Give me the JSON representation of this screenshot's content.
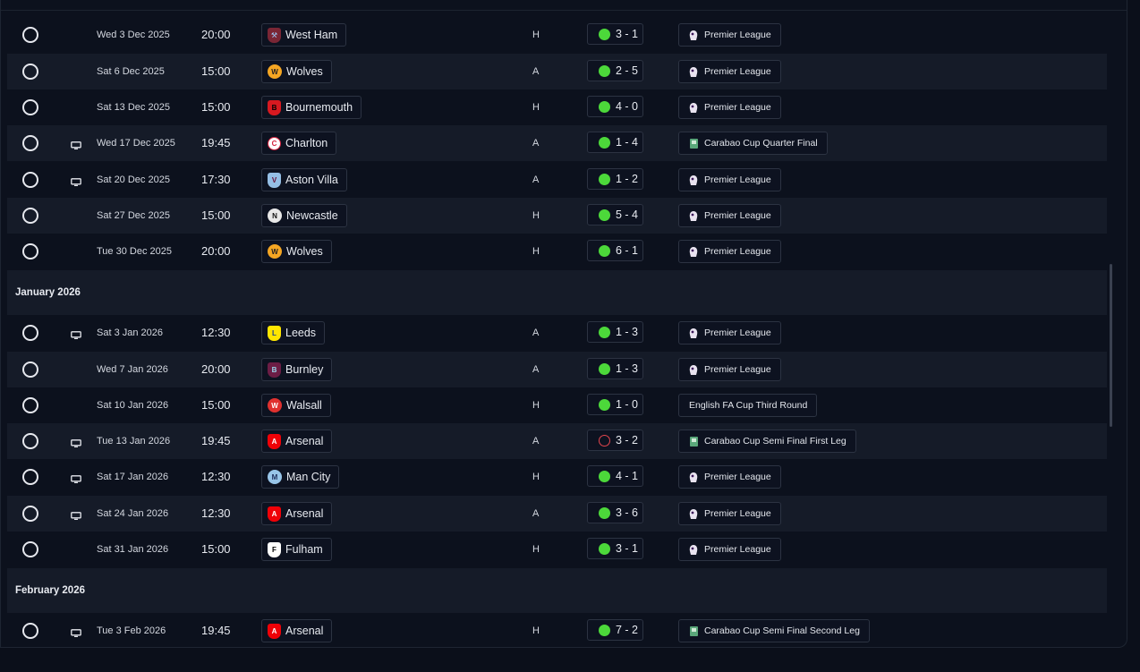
{
  "colors": {
    "win": "#4cd83a",
    "loss": "#e2454d",
    "background": "#0c111d",
    "row_alt": "#151b28"
  },
  "icons": {
    "select": "radio-circle-icon",
    "tv": "tv-icon",
    "premier_league": "premier-league-icon",
    "carabao": "carabao-cup-icon"
  },
  "rows": [
    {
      "date": "Wed 3 Dec 2025",
      "time": "20:00",
      "team": "West Ham",
      "venue": "H",
      "score": "3 - 1",
      "outcome": "W",
      "competition": "Premier League",
      "tv": false
    },
    {
      "date": "Sat 6 Dec 2025",
      "time": "15:00",
      "team": "Wolves",
      "venue": "A",
      "score": "2 - 5",
      "outcome": "W",
      "competition": "Premier League",
      "tv": false
    },
    {
      "date": "Sat 13 Dec 2025",
      "time": "15:00",
      "team": "Bournemouth",
      "venue": "H",
      "score": "4 - 0",
      "outcome": "W",
      "competition": "Premier League",
      "tv": false
    },
    {
      "date": "Wed 17 Dec 2025",
      "time": "19:45",
      "team": "Charlton",
      "venue": "A",
      "score": "1 - 4",
      "outcome": "W",
      "competition": "Carabao Cup Quarter Final",
      "tv": true
    },
    {
      "date": "Sat 20 Dec 2025",
      "time": "17:30",
      "team": "Aston Villa",
      "venue": "A",
      "score": "1 - 2",
      "outcome": "W",
      "competition": "Premier League",
      "tv": true
    },
    {
      "date": "Sat 27 Dec 2025",
      "time": "15:00",
      "team": "Newcastle",
      "venue": "H",
      "score": "5 - 4",
      "outcome": "W",
      "competition": "Premier League",
      "tv": false
    },
    {
      "date": "Tue 30 Dec 2025",
      "time": "20:00",
      "team": "Wolves",
      "venue": "H",
      "score": "6 - 1",
      "outcome": "W",
      "competition": "Premier League",
      "tv": false
    }
  ],
  "months": [
    "January 2026",
    "February 2026"
  ],
  "rows_jan": [
    {
      "date": "Sat 3 Jan 2026",
      "time": "12:30",
      "team": "Leeds",
      "venue": "A",
      "score": "1 - 3",
      "outcome": "W",
      "competition": "Premier League",
      "tv": true
    },
    {
      "date": "Wed 7 Jan 2026",
      "time": "20:00",
      "team": "Burnley",
      "venue": "A",
      "score": "1 - 3",
      "outcome": "W",
      "competition": "Premier League",
      "tv": false
    },
    {
      "date": "Sat 10 Jan 2026",
      "time": "15:00",
      "team": "Walsall",
      "venue": "H",
      "score": "1 - 0",
      "outcome": "W",
      "competition": "English FA Cup Third Round",
      "tv": false
    },
    {
      "date": "Tue 13 Jan 2026",
      "time": "19:45",
      "team": "Arsenal",
      "venue": "A",
      "score": "3 - 2",
      "outcome": "L",
      "competition": "Carabao Cup Semi Final First Leg",
      "tv": true
    },
    {
      "date": "Sat 17 Jan 2026",
      "time": "12:30",
      "team": "Man City",
      "venue": "H",
      "score": "4 - 1",
      "outcome": "W",
      "competition": "Premier League",
      "tv": true
    },
    {
      "date": "Sat 24 Jan 2026",
      "time": "12:30",
      "team": "Arsenal",
      "venue": "A",
      "score": "3 - 6",
      "outcome": "W",
      "competition": "Premier League",
      "tv": true
    },
    {
      "date": "Sat 31 Jan 2026",
      "time": "15:00",
      "team": "Fulham",
      "venue": "H",
      "score": "3 - 1",
      "outcome": "W",
      "competition": "Premier League",
      "tv": false
    }
  ],
  "rows_feb": [
    {
      "date": "Tue 3 Feb 2026",
      "time": "19:45",
      "team": "Arsenal",
      "venue": "H",
      "score": "7 - 2",
      "outcome": "W",
      "competition": "Carabao Cup Semi Final Second Leg",
      "tv": true
    }
  ]
}
